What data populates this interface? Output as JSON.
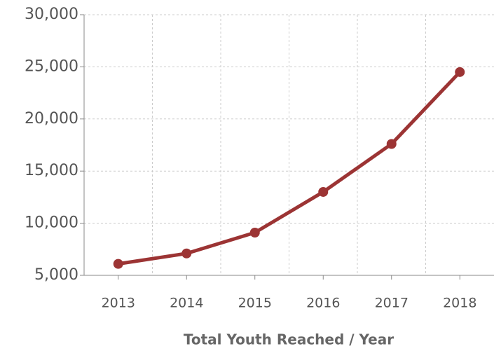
{
  "chart_data": {
    "type": "line",
    "x_label": "Total Youth Reached / Year",
    "categories": [
      "2013",
      "2014",
      "2015",
      "2016",
      "2017",
      "2018"
    ],
    "series": [
      {
        "name": "Total Youth Reached",
        "color": "#9c3434",
        "values": [
          6100,
          7100,
          9100,
          13000,
          17600,
          24500
        ]
      }
    ],
    "ylim": [
      5000,
      30000
    ],
    "yticks": [
      {
        "value": 5000,
        "label": "5,000"
      },
      {
        "value": 10000,
        "label": "10,000"
      },
      {
        "value": 15000,
        "label": "15,000"
      },
      {
        "value": 20000,
        "label": "20,000"
      },
      {
        "value": 25000,
        "label": "25,000"
      },
      {
        "value": 30000,
        "label": "30,000"
      }
    ],
    "grid": true
  }
}
